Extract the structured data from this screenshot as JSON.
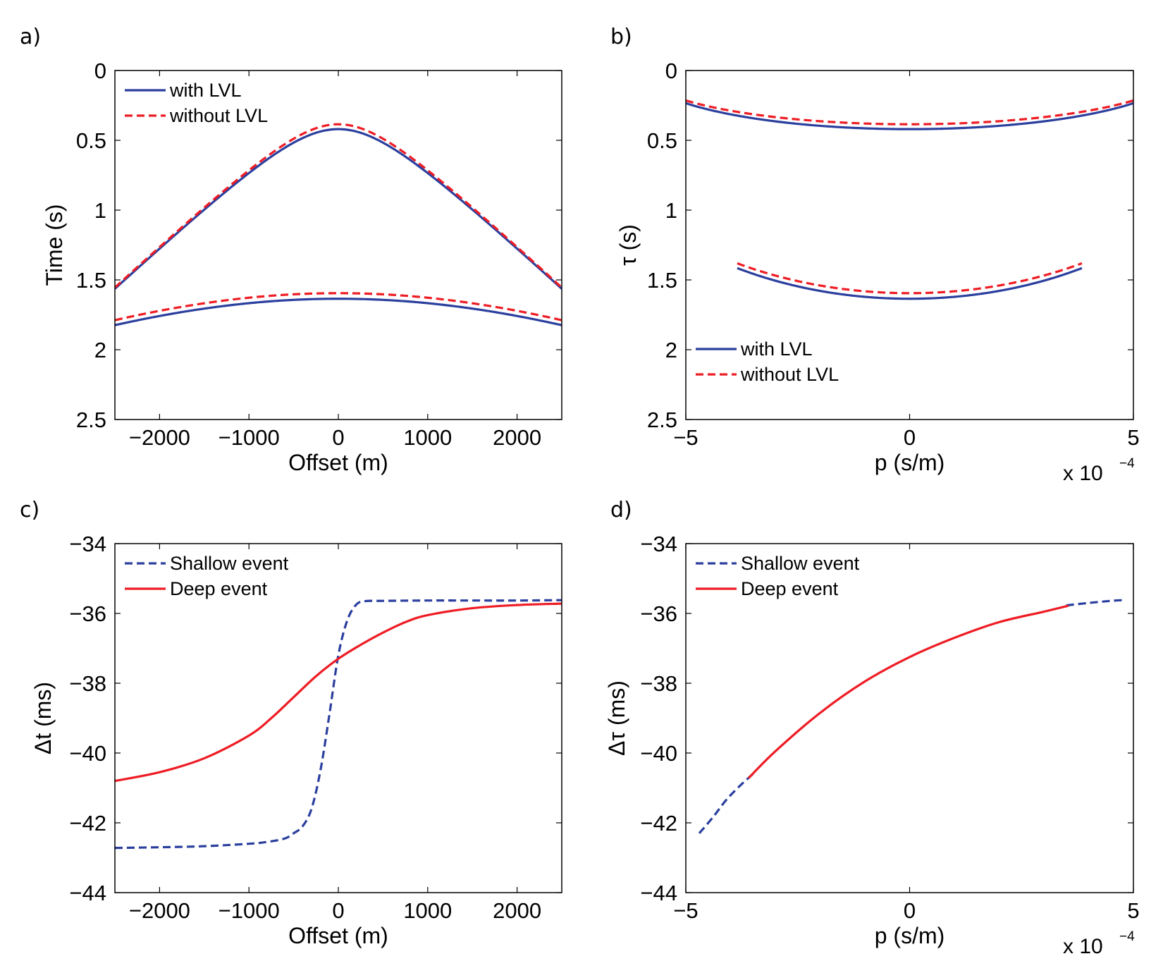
{
  "chart_data": [
    {
      "id": "a",
      "panel_label": "a)",
      "type": "line",
      "xlabel": "Offset (m)",
      "ylabel": "Time (s)",
      "xlim": [
        -2500,
        2500
      ],
      "ylim": [
        0,
        2.5
      ],
      "y_reversed": true,
      "xticks": [
        -2000,
        -1000,
        0,
        1000,
        2000
      ],
      "xtick_labels": [
        "−2000",
        "−1000",
        "0",
        "1000",
        "2000"
      ],
      "yticks": [
        0,
        0.5,
        1,
        1.5,
        2,
        2.5
      ],
      "ytick_labels": [
        "0",
        "0.5",
        "1",
        "1.5",
        "2",
        "2.5"
      ],
      "legend_position": "top-left",
      "legend": [
        {
          "label": "with LVL",
          "color": "#2b3f9e",
          "style": "solid"
        },
        {
          "label": "without LVL",
          "color": "#ee1c24",
          "style": "dashed"
        }
      ],
      "series": [
        {
          "name": "with LVL",
          "event": "shallow",
          "model": "hyperbola",
          "t0": 0.42,
          "v": 1660,
          "color": "#2b3f9e",
          "style": "solid"
        },
        {
          "name": "without LVL",
          "event": "shallow",
          "model": "hyperbola",
          "t0": 0.385,
          "v": 1660,
          "color": "#ee1c24",
          "style": "dashed"
        },
        {
          "name": "with LVL",
          "event": "deep",
          "model": "hyperbola",
          "t0": 1.635,
          "v": 3090,
          "color": "#2b3f9e",
          "style": "solid"
        },
        {
          "name": "without LVL",
          "event": "deep",
          "model": "hyperbola",
          "t0": 1.595,
          "v": 3090,
          "color": "#ee1c24",
          "style": "dashed"
        }
      ]
    },
    {
      "id": "b",
      "panel_label": "b)",
      "type": "line",
      "xlabel": "p (s/m)",
      "ylabel": "τ (s)",
      "xlim": [
        -5,
        5
      ],
      "ylim": [
        0,
        2.5
      ],
      "y_reversed": true,
      "x_scale_note": "x 10",
      "x_scale_exponent": "−4",
      "xticks": [
        -5,
        0,
        5
      ],
      "xtick_labels": [
        "−5",
        "0",
        "5"
      ],
      "yticks": [
        0,
        0.5,
        1,
        1.5,
        2,
        2.5
      ],
      "ytick_labels": [
        "0",
        "0.5",
        "1",
        "1.5",
        "2",
        "2.5"
      ],
      "legend_position": "bottom-left",
      "legend": [
        {
          "label": "with LVL",
          "color": "#2b3f9e",
          "style": "solid"
        },
        {
          "label": "without LVL",
          "color": "#ee1c24",
          "style": "dashed"
        }
      ],
      "series": [
        {
          "name": "with LVL",
          "event": "shallow",
          "model": "ellipse",
          "t0": 0.42,
          "v": 1660,
          "p_range": [
            -5,
            5
          ],
          "color": "#2b3f9e",
          "style": "solid"
        },
        {
          "name": "without LVL",
          "event": "shallow",
          "model": "ellipse",
          "t0": 0.385,
          "v": 1660,
          "p_range": [
            -5,
            5
          ],
          "color": "#ee1c24",
          "style": "dashed"
        },
        {
          "name": "with LVL",
          "event": "deep",
          "model": "ellipse",
          "t0": 1.635,
          "v": 1300,
          "p_range": [
            -3.85,
            3.85
          ],
          "color": "#2b3f9e",
          "style": "solid"
        },
        {
          "name": "without LVL",
          "event": "deep",
          "model": "ellipse",
          "t0": 1.595,
          "v": 1300,
          "p_range": [
            -3.85,
            3.85
          ],
          "color": "#ee1c24",
          "style": "dashed"
        }
      ]
    },
    {
      "id": "c",
      "panel_label": "c)",
      "type": "line",
      "xlabel": "Offset (m)",
      "ylabel": "Δt (ms)",
      "xlim": [
        -2500,
        2500
      ],
      "ylim": [
        -44,
        -34
      ],
      "y_reversed": false,
      "xticks": [
        -2000,
        -1000,
        0,
        1000,
        2000
      ],
      "xtick_labels": [
        "−2000",
        "−1000",
        "0",
        "1000",
        "2000"
      ],
      "yticks": [
        -44,
        -42,
        -40,
        -38,
        -36,
        -34
      ],
      "ytick_labels": [
        "−44",
        "−42",
        "−40",
        "−38",
        "−36",
        "−34"
      ],
      "legend_position": "top-left",
      "legend": [
        {
          "label": "Shallow event",
          "color": "#2b3f9e",
          "style": "dashed"
        },
        {
          "label": "Deep event",
          "color": "#ee1c24",
          "style": "solid"
        }
      ],
      "series": [
        {
          "name": "Shallow event",
          "color": "#2b3f9e",
          "style": "dashed",
          "x": [
            -2500,
            -2000,
            -1500,
            -1000,
            -800,
            -600,
            -500,
            -400,
            -300,
            -200,
            -100,
            0,
            100,
            200,
            300,
            500,
            1000,
            1500,
            2000,
            2500
          ],
          "y": [
            -42.72,
            -42.7,
            -42.67,
            -42.6,
            -42.55,
            -42.45,
            -42.3,
            -42.1,
            -41.6,
            -40.5,
            -38.9,
            -37.2,
            -36.2,
            -35.75,
            -35.65,
            -35.64,
            -35.63,
            -35.63,
            -35.63,
            -35.62
          ]
        },
        {
          "name": "Deep event",
          "color": "#ee1c24",
          "style": "solid",
          "x": [
            -2500,
            -2000,
            -1500,
            -1000,
            -750,
            -500,
            -250,
            0,
            250,
            500,
            750,
            1000,
            1500,
            2000,
            2500
          ],
          "y": [
            -40.8,
            -40.55,
            -40.15,
            -39.5,
            -39.0,
            -38.4,
            -37.8,
            -37.3,
            -36.9,
            -36.55,
            -36.25,
            -36.05,
            -35.85,
            -35.76,
            -35.72
          ]
        }
      ]
    },
    {
      "id": "d",
      "panel_label": "d)",
      "type": "line",
      "xlabel": "p (s/m)",
      "ylabel": "Δτ (ms)",
      "xlim": [
        -5,
        5
      ],
      "ylim": [
        -44,
        -34
      ],
      "y_reversed": false,
      "x_scale_note": "x 10",
      "x_scale_exponent": "−4",
      "xticks": [
        -5,
        0,
        5
      ],
      "xtick_labels": [
        "−5",
        "0",
        "5"
      ],
      "yticks": [
        -44,
        -42,
        -40,
        -38,
        -36,
        -34
      ],
      "ytick_labels": [
        "−44",
        "−42",
        "−40",
        "−38",
        "−36",
        "−34"
      ],
      "legend_position": "top-left",
      "legend": [
        {
          "label": "Shallow event",
          "color": "#2b3f9e",
          "style": "dashed"
        },
        {
          "label": "Deep event",
          "color": "#ee1c24",
          "style": "solid"
        }
      ],
      "series": [
        {
          "name": "Shallow event",
          "color": "#2b3f9e",
          "style": "dashed",
          "x": [
            -4.7,
            -4.4,
            -4.1,
            -3.8,
            -3.5,
            3.5,
            4.0,
            4.5,
            4.75
          ],
          "y": [
            -42.3,
            -41.85,
            -41.35,
            -40.95,
            -40.6,
            -35.77,
            -35.7,
            -35.64,
            -35.62
          ]
        },
        {
          "name": "Deep event",
          "color": "#ee1c24",
          "style": "solid",
          "x": [
            -3.6,
            -3,
            -2,
            -1,
            0,
            1,
            2,
            3,
            3.55
          ],
          "y": [
            -40.72,
            -39.95,
            -38.85,
            -37.95,
            -37.25,
            -36.7,
            -36.25,
            -35.95,
            -35.78
          ]
        }
      ]
    }
  ]
}
